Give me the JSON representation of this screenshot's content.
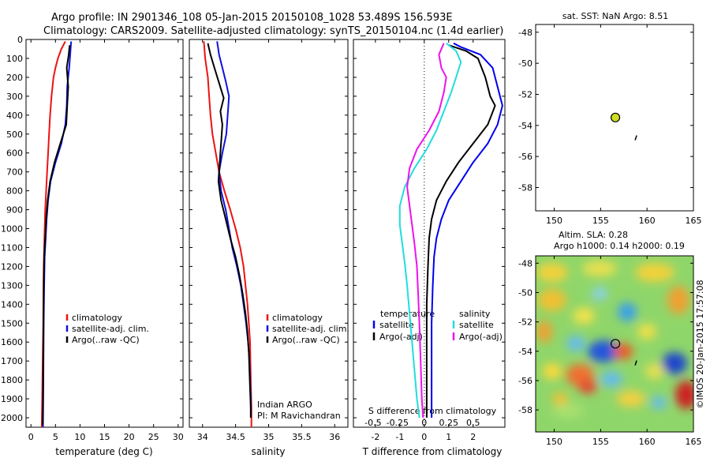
{
  "header": {
    "line1": "Argo profile: IN 2901346_108 05-Jan-2015 20150108_1028 53.489S 156.593E",
    "line2": "Climatology: CARS2009. Satellite-adjusted climatology: synTS_20150104.nc (1.4d earlier)"
  },
  "colors": {
    "climatology": "#ee1111",
    "satellite": "#1111dd",
    "argo": "#000000",
    "temp_sat": "#0000ee",
    "sal_sat": "#22dddd",
    "sal_argo": "#ee11ee",
    "argo_marker": "#ccdd22"
  },
  "chart_data": [
    {
      "type": "line",
      "id": "temperature",
      "xlabel": "temperature (deg C)",
      "ylabel": "",
      "xlim": [
        -1,
        31
      ],
      "ylim": [
        2050,
        0
      ],
      "xticks": [
        0,
        5,
        10,
        15,
        20,
        25,
        30
      ],
      "yticks": [
        0,
        100,
        200,
        300,
        400,
        500,
        600,
        700,
        800,
        900,
        1000,
        1100,
        1200,
        1300,
        1400,
        1500,
        1600,
        1700,
        1800,
        1900,
        2000
      ],
      "grid": false,
      "legend_position": "lower-center",
      "legend": [
        "climatology",
        "satellite-adj. clim.",
        "Argo(..raw -QC)"
      ],
      "series": [
        {
          "name": "climatology",
          "color_key": "climatology",
          "points": [
            [
              7.0,
              10
            ],
            [
              6.2,
              50
            ],
            [
              5.5,
              100
            ],
            [
              5.0,
              150
            ],
            [
              4.6,
              200
            ],
            [
              4.2,
              300
            ],
            [
              3.9,
              400
            ],
            [
              3.7,
              500
            ],
            [
              3.5,
              600
            ],
            [
              3.3,
              700
            ],
            [
              3.1,
              800
            ],
            [
              2.9,
              900
            ],
            [
              2.8,
              1000
            ],
            [
              2.7,
              1100
            ],
            [
              2.6,
              1200
            ],
            [
              2.55,
              1300
            ],
            [
              2.5,
              1500
            ],
            [
              2.4,
              1700
            ],
            [
              2.3,
              1900
            ],
            [
              2.2,
              2050
            ]
          ]
        },
        {
          "name": "satellite-adj. clim.",
          "color_key": "satellite",
          "points": [
            [
              8.2,
              10
            ],
            [
              8.0,
              80
            ],
            [
              7.8,
              150
            ],
            [
              7.4,
              250
            ],
            [
              7.3,
              350
            ],
            [
              7.0,
              450
            ],
            [
              6.2,
              550
            ],
            [
              5.0,
              650
            ],
            [
              4.0,
              750
            ],
            [
              3.5,
              850
            ],
            [
              3.2,
              950
            ],
            [
              3.0,
              1050
            ],
            [
              2.8,
              1150
            ],
            [
              2.7,
              1300
            ],
            [
              2.6,
              1500
            ],
            [
              2.55,
              1700
            ],
            [
              2.5,
              1900
            ],
            [
              2.45,
              2050
            ]
          ]
        },
        {
          "name": "Argo(..raw -QC)",
          "color_key": "argo",
          "points": [
            [
              7.9,
              30
            ],
            [
              7.7,
              80
            ],
            [
              7.3,
              150
            ],
            [
              7.6,
              250
            ],
            [
              7.4,
              350
            ],
            [
              7.2,
              450
            ],
            [
              6.0,
              550
            ],
            [
              4.8,
              650
            ],
            [
              3.9,
              750
            ],
            [
              3.4,
              850
            ],
            [
              3.1,
              950
            ],
            [
              2.9,
              1050
            ],
            [
              2.7,
              1150
            ],
            [
              2.6,
              1300
            ],
            [
              2.55,
              1500
            ],
            [
              2.5,
              1700
            ],
            [
              2.45,
              1900
            ],
            [
              2.4,
              2040
            ]
          ]
        }
      ]
    },
    {
      "type": "line",
      "id": "salinity",
      "xlabel": "salinity",
      "ylabel": "",
      "xlim": [
        33.8,
        36.2
      ],
      "ylim": [
        2050,
        0
      ],
      "xticks": [
        34,
        34.5,
        35,
        35.5,
        36
      ],
      "yticks": [
        0,
        100,
        200,
        300,
        400,
        500,
        600,
        700,
        800,
        900,
        1000,
        1100,
        1200,
        1300,
        1400,
        1500,
        1600,
        1700,
        1800,
        1900,
        2000
      ],
      "grid": false,
      "legend_position": "lower-center",
      "legend": [
        "climatology",
        "satellite-adj. clim.",
        "Argo(..raw -QC)"
      ],
      "annotations": [
        "Indian ARGO",
        "PI: M Ravichandran"
      ],
      "series": [
        {
          "name": "climatology",
          "color_key": "climatology",
          "points": [
            [
              34.02,
              10
            ],
            [
              34.04,
              100
            ],
            [
              34.08,
              200
            ],
            [
              34.1,
              300
            ],
            [
              34.12,
              400
            ],
            [
              34.15,
              500
            ],
            [
              34.2,
              600
            ],
            [
              34.25,
              700
            ],
            [
              34.33,
              800
            ],
            [
              34.42,
              900
            ],
            [
              34.5,
              1000
            ],
            [
              34.57,
              1100
            ],
            [
              34.62,
              1200
            ],
            [
              34.65,
              1300
            ],
            [
              34.68,
              1400
            ],
            [
              34.7,
              1500
            ],
            [
              34.72,
              1600
            ],
            [
              34.73,
              1800
            ],
            [
              34.74,
              1950
            ],
            [
              34.74,
              2050
            ]
          ]
        },
        {
          "name": "satellite-adj. clim.",
          "color_key": "satellite",
          "points": [
            [
              34.22,
              10
            ],
            [
              34.25,
              80
            ],
            [
              34.3,
              150
            ],
            [
              34.35,
              220
            ],
            [
              34.4,
              300
            ],
            [
              34.38,
              400
            ],
            [
              34.36,
              500
            ],
            [
              34.3,
              600
            ],
            [
              34.25,
              700
            ],
            [
              34.28,
              800
            ],
            [
              34.35,
              900
            ],
            [
              34.4,
              1000
            ],
            [
              34.45,
              1100
            ],
            [
              34.52,
              1200
            ],
            [
              34.58,
              1300
            ],
            [
              34.62,
              1400
            ],
            [
              34.66,
              1500
            ],
            [
              34.69,
              1600
            ],
            [
              34.71,
              1700
            ],
            [
              34.72,
              1800
            ],
            [
              34.73,
              1900
            ],
            [
              34.73,
              2000
            ]
          ]
        },
        {
          "name": "Argo(..raw -QC)",
          "color_key": "argo",
          "points": [
            [
              34.08,
              20
            ],
            [
              34.12,
              80
            ],
            [
              34.18,
              150
            ],
            [
              34.25,
              230
            ],
            [
              34.32,
              310
            ],
            [
              34.27,
              380
            ],
            [
              34.3,
              450
            ],
            [
              34.28,
              550
            ],
            [
              34.26,
              650
            ],
            [
              34.24,
              750
            ],
            [
              34.28,
              850
            ],
            [
              34.35,
              950
            ],
            [
              34.42,
              1050
            ],
            [
              34.5,
              1150
            ],
            [
              34.56,
              1250
            ],
            [
              34.61,
              1350
            ],
            [
              34.65,
              1450
            ],
            [
              34.68,
              1550
            ],
            [
              34.7,
              1650
            ],
            [
              34.71,
              1750
            ],
            [
              34.72,
              1850
            ],
            [
              34.73,
              1950
            ],
            [
              34.73,
              2000
            ]
          ]
        }
      ]
    },
    {
      "type": "line",
      "id": "difference",
      "xlabel": "T difference from climatology",
      "xlabel_top": "S difference from climatology",
      "xlim": [
        -2.9,
        3.3
      ],
      "ylim": [
        2050,
        0
      ],
      "xticks": [
        -2,
        -1,
        0,
        1,
        2
      ],
      "xticks_top": [
        "-0.5",
        "-0.25",
        "0",
        "0.25",
        "0.5"
      ],
      "yticks": [
        0,
        100,
        200,
        300,
        400,
        500,
        600,
        700,
        800,
        900,
        1000,
        1100,
        1200,
        1300,
        1400,
        1500,
        1600,
        1700,
        1800,
        1900,
        2000
      ],
      "grid": false,
      "zero_line": "dotted",
      "legend_position": "lower-center",
      "legend_left_title": "temperature",
      "legend_right_title": "salinity",
      "legend_left": [
        "satellite",
        "Argo(-adj)"
      ],
      "legend_right": [
        "satellite",
        "Argo(-adj)"
      ],
      "series": [
        {
          "name": "satellite",
          "group": "temperature",
          "color_key": "temp_sat",
          "points": [
            [
              1.2,
              20
            ],
            [
              1.5,
              40
            ],
            [
              2.3,
              80
            ],
            [
              2.8,
              150
            ],
            [
              3.0,
              250
            ],
            [
              3.2,
              350
            ],
            [
              3.0,
              450
            ],
            [
              2.6,
              550
            ],
            [
              2.0,
              650
            ],
            [
              1.5,
              750
            ],
            [
              1.0,
              850
            ],
            [
              0.7,
              950
            ],
            [
              0.5,
              1050
            ],
            [
              0.4,
              1150
            ],
            [
              0.35,
              1300
            ],
            [
              0.3,
              1500
            ],
            [
              0.3,
              1700
            ],
            [
              0.3,
              1900
            ],
            [
              0.3,
              2000
            ]
          ]
        },
        {
          "name": "Argo(-adj)",
          "group": "temperature",
          "color_key": "argo",
          "points": [
            [
              1.0,
              30
            ],
            [
              1.7,
              60
            ],
            [
              2.2,
              100
            ],
            [
              2.5,
              200
            ],
            [
              2.7,
              300
            ],
            [
              2.9,
              350
            ],
            [
              2.6,
              450
            ],
            [
              2.0,
              550
            ],
            [
              1.4,
              650
            ],
            [
              0.9,
              750
            ],
            [
              0.5,
              850
            ],
            [
              0.3,
              950
            ],
            [
              0.2,
              1050
            ],
            [
              0.15,
              1200
            ],
            [
              0.1,
              1400
            ],
            [
              0.1,
              1700
            ],
            [
              0.1,
              2000
            ]
          ]
        },
        {
          "name": "satellite",
          "group": "salinity",
          "color_key": "sal_sat",
          "points": [
            [
              0.9,
              20
            ],
            [
              1.3,
              60
            ],
            [
              1.5,
              120
            ],
            [
              1.3,
              200
            ],
            [
              1.1,
              280
            ],
            [
              0.8,
              380
            ],
            [
              0.5,
              480
            ],
            [
              0.1,
              580
            ],
            [
              -0.4,
              680
            ],
            [
              -0.8,
              780
            ],
            [
              -1.0,
              880
            ],
            [
              -1.0,
              980
            ],
            [
              -0.9,
              1080
            ],
            [
              -0.8,
              1180
            ],
            [
              -0.7,
              1300
            ],
            [
              -0.6,
              1450
            ],
            [
              -0.5,
              1600
            ],
            [
              -0.4,
              1750
            ],
            [
              -0.3,
              1900
            ],
            [
              -0.2,
              2000
            ]
          ]
        },
        {
          "name": "Argo(-adj)",
          "group": "salinity",
          "color_key": "sal_argo",
          "points": [
            [
              0.8,
              20
            ],
            [
              0.6,
              80
            ],
            [
              0.7,
              150
            ],
            [
              0.9,
              200
            ],
            [
              0.8,
              280
            ],
            [
              0.6,
              380
            ],
            [
              0.2,
              480
            ],
            [
              -0.3,
              580
            ],
            [
              -0.6,
              680
            ],
            [
              -0.7,
              780
            ],
            [
              -0.6,
              880
            ],
            [
              -0.5,
              980
            ],
            [
              -0.4,
              1080
            ],
            [
              -0.3,
              1200
            ],
            [
              -0.25,
              1350
            ],
            [
              -0.2,
              1500
            ],
            [
              -0.15,
              1700
            ],
            [
              -0.1,
              1900
            ],
            [
              -0.05,
              2000
            ]
          ]
        }
      ]
    },
    {
      "type": "scatter",
      "id": "map-sst",
      "title": "sat. SST: NaN  Argo: 8.51",
      "xlim": [
        148,
        165
      ],
      "ylim": [
        -59.5,
        -47.5
      ],
      "xticks": [
        150,
        155,
        160,
        165
      ],
      "yticks": [
        -48,
        -50,
        -52,
        -54,
        -56,
        -58
      ],
      "points": [
        {
          "label": "argo-position",
          "x": 156.59,
          "y": -53.49
        },
        {
          "label": "float-track",
          "x": 158.8,
          "y": -54.8
        }
      ]
    },
    {
      "type": "heatmap",
      "id": "map-sla",
      "title_line1": "Altim. SLA: 0.28",
      "title_line2": "Argo h1000: 0.14 h2000: 0.19",
      "xlim": [
        148,
        165
      ],
      "ylim": [
        -59.5,
        -47.5
      ],
      "xticks": [
        150,
        155,
        160,
        165
      ],
      "yticks": [
        -48,
        -50,
        -52,
        -54,
        -56,
        -58
      ],
      "credit": "©IMOS 20-Jan-2015 17:57:08",
      "points": [
        {
          "label": "argo-position",
          "x": 156.59,
          "y": -53.49
        },
        {
          "label": "float-track",
          "x": 158.8,
          "y": -54.8
        }
      ]
    }
  ]
}
